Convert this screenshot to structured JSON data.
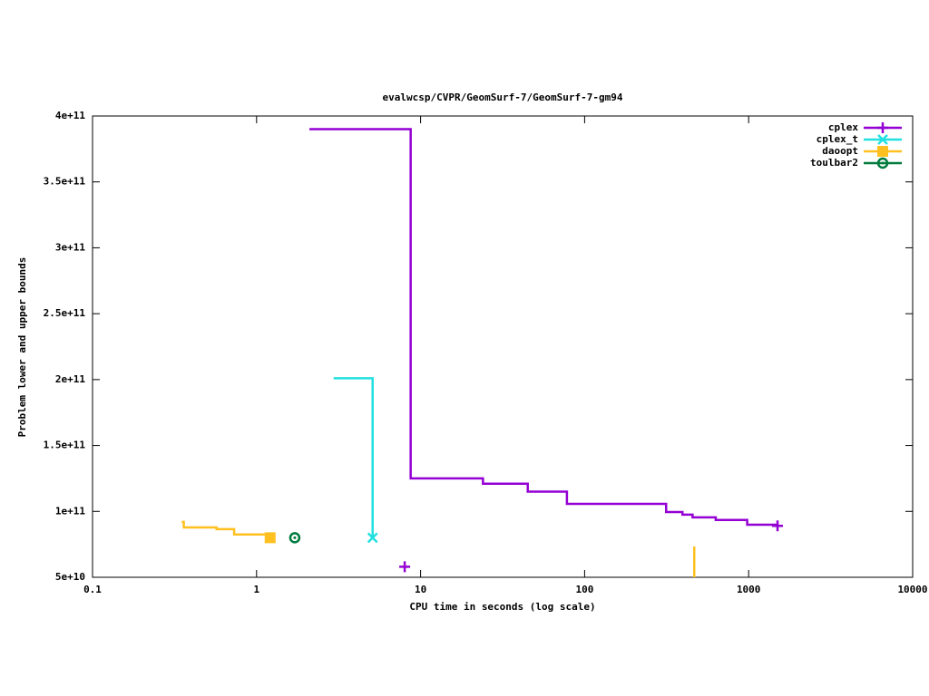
{
  "chart_data": {
    "type": "line",
    "style": "steps",
    "title": "evalwcsp/CVPR/GeomSurf-7/GeomSurf-7-gm94",
    "x_label": "CPU time in seconds (log scale)",
    "y_label": "Problem lower and upper bounds",
    "xscale": "log",
    "xlim": [
      0.1,
      10000
    ],
    "xticks": [
      0.1,
      1,
      10,
      100,
      1000,
      10000
    ],
    "ylim": [
      50000000000,
      400000000000
    ],
    "yticks": [
      {
        "value": 50000000000,
        "label": "5e+10"
      },
      {
        "value": 100000000000,
        "label": "1e+11"
      },
      {
        "value": 150000000000,
        "label": "1.5e+11"
      },
      {
        "value": 200000000000,
        "label": "2e+11"
      },
      {
        "value": 250000000000,
        "label": "2.5e+11"
      },
      {
        "value": 300000000000,
        "label": "3e+11"
      },
      {
        "value": 350000000000,
        "label": "3.5e+11"
      },
      {
        "value": 400000000000,
        "label": "4e+11"
      }
    ],
    "legend": "top right",
    "series": [
      {
        "name": "cplex",
        "color": "#9400d3",
        "marker": "plus",
        "x": [
          2.1,
          8.7,
          24,
          45,
          78,
          314,
          395,
          455,
          630,
          980,
          1500,
          null,
          8
        ],
        "values": [
          390000000000,
          125000000000,
          121000000000,
          115000000000,
          105700000000,
          99500000000,
          97500000000,
          95500000000,
          93500000000,
          89900000000,
          89000000000,
          null,
          58000000000
        ]
      },
      {
        "name": "cplex_t",
        "color": "#22e0e0",
        "marker": "cross",
        "x": [
          2.95,
          5.1
        ],
        "values": [
          201000000000,
          80000000000
        ]
      },
      {
        "name": "daoopt",
        "color": "#ffc020",
        "marker": "square",
        "x": [
          0.35,
          0.36,
          0.57,
          0.73,
          1.21,
          null,
          466,
          466
        ],
        "values": [
          92000000000,
          87800000000,
          86500000000,
          82500000000,
          80000000000,
          null,
          73400000000,
          45000000000
        ]
      },
      {
        "name": "toulbar2",
        "color": "#007a3d",
        "marker": "circle",
        "x": [
          1.71
        ],
        "values": [
          80000000000
        ]
      }
    ]
  }
}
